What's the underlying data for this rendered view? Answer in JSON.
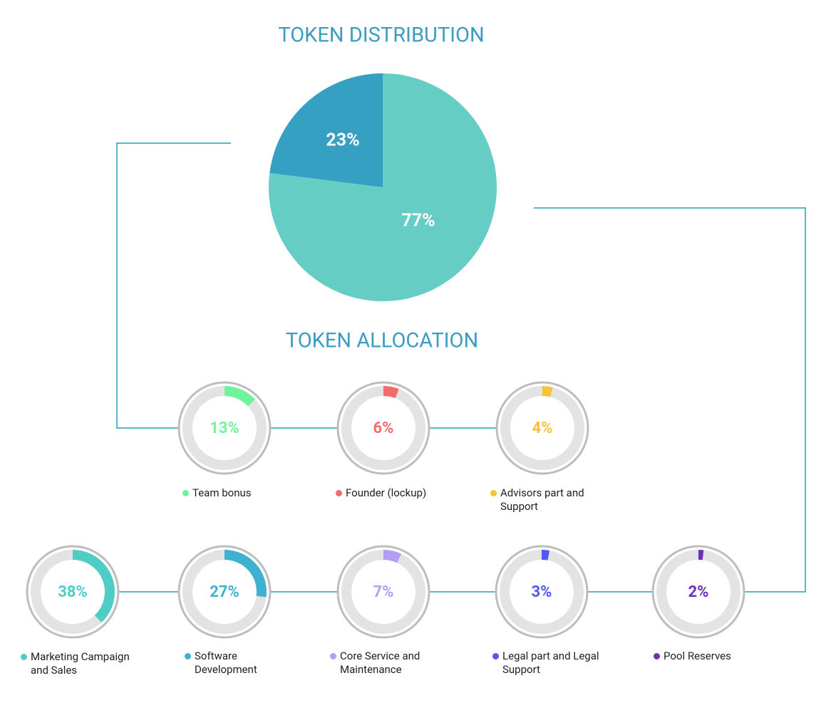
{
  "chart_data": [
    {
      "type": "pie",
      "title": "TOKEN DISTRIBUTION",
      "values": [
        77,
        23
      ],
      "value_labels": [
        "77%",
        "23%"
      ],
      "colors": [
        "#66cdc4",
        "#36a0c3"
      ]
    },
    {
      "type": "gauge",
      "title": "TOKEN ALLOCATION",
      "categories": [
        "Team bonus",
        "Founder (lockup)",
        "Advisors part and Support",
        "Marketing Campaign and Sales",
        "Software Development",
        "Core Service and Maintenance",
        "Legal part and Legal Support",
        "Pool Reserves"
      ],
      "values": [
        13,
        6,
        4,
        38,
        27,
        7,
        3,
        2
      ],
      "value_labels": [
        "13%",
        "6%",
        "4%",
        "38%",
        "27%",
        "7%",
        "3%",
        "2%"
      ],
      "colors": [
        "#6ef59b",
        "#f36b6b",
        "#f7c13a",
        "#4ecdc4",
        "#3fb1d0",
        "#b59cf5",
        "#5258f5",
        "#7030b5"
      ]
    }
  ]
}
